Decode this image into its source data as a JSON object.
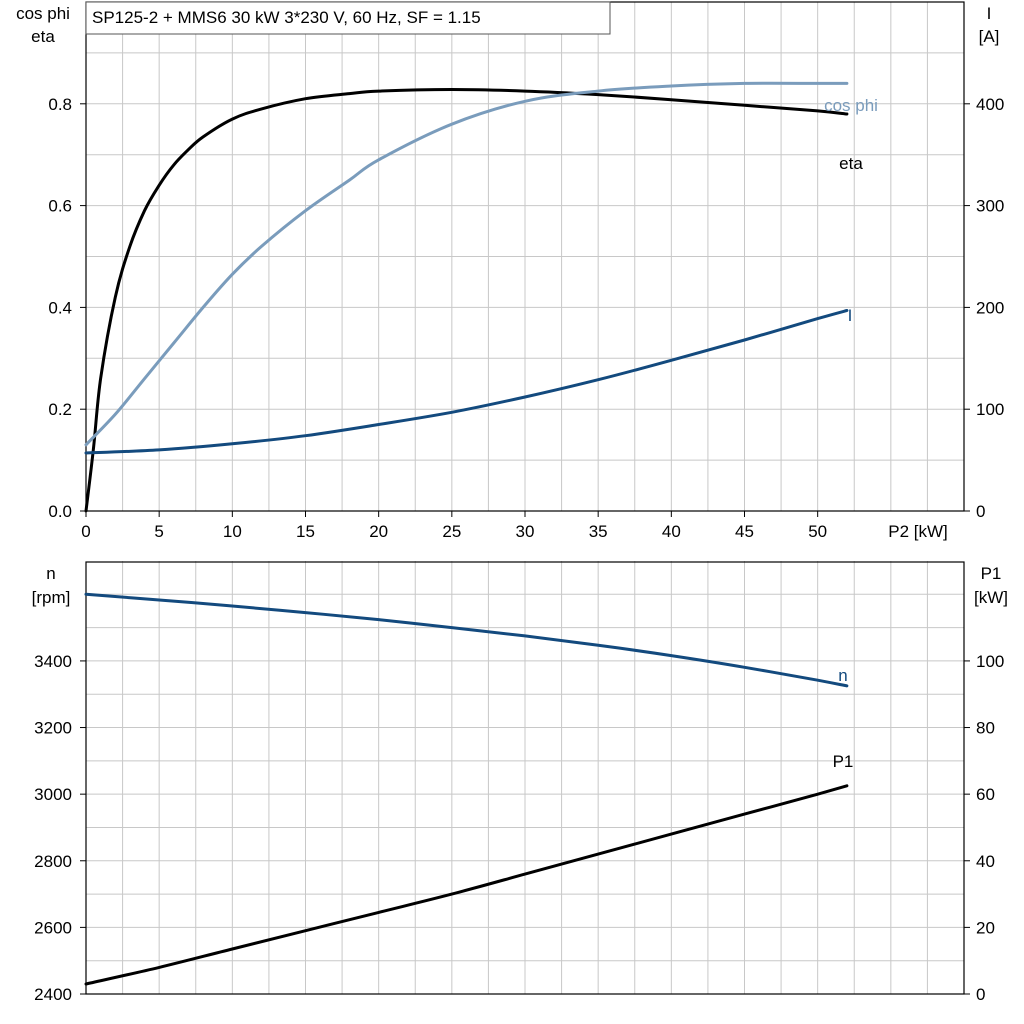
{
  "chart_data": [
    {
      "type": "line",
      "title": "SP125-2 + MMS6   30 kW   3*230 V, 60 Hz, SF = 1.15",
      "left_axis_label": [
        "cos phi",
        "eta"
      ],
      "right_axis_label": [
        "I",
        "[A]"
      ],
      "xlabel": "P2 [kW]",
      "xlim": [
        0,
        60
      ],
      "ylim_left": [
        0,
        1.0
      ],
      "ylim_right": [
        0,
        500
      ],
      "x_ticks": [
        "0",
        "5",
        "10",
        "15",
        "20",
        "25",
        "30",
        "35",
        "40",
        "45",
        "50"
      ],
      "y_left_ticks": [
        "0.0",
        "0.2",
        "0.4",
        "0.6",
        "0.8"
      ],
      "y_right_ticks": [
        "0",
        "100",
        "200",
        "300",
        "400"
      ],
      "grid": true,
      "series": [
        {
          "name": "eta",
          "axis": "left",
          "color": "#000000",
          "x": [
            0,
            0.5,
            1,
            2,
            3,
            4,
            5,
            6,
            7,
            8,
            10,
            12,
            15,
            18,
            20,
            25,
            30,
            35,
            40,
            45,
            50,
            52
          ],
          "y": [
            0.0,
            0.12,
            0.26,
            0.42,
            0.52,
            0.59,
            0.64,
            0.68,
            0.71,
            0.735,
            0.77,
            0.79,
            0.81,
            0.82,
            0.825,
            0.828,
            0.825,
            0.818,
            0.808,
            0.797,
            0.786,
            0.78
          ]
        },
        {
          "name": "cos phi",
          "axis": "left",
          "color": "#7a9cbc",
          "x": [
            0,
            2,
            4,
            6,
            8,
            10,
            12,
            15,
            18,
            20,
            25,
            30,
            35,
            40,
            45,
            50,
            52
          ],
          "y": [
            0.13,
            0.19,
            0.26,
            0.33,
            0.4,
            0.465,
            0.52,
            0.59,
            0.65,
            0.69,
            0.76,
            0.805,
            0.825,
            0.835,
            0.84,
            0.84,
            0.84
          ]
        },
        {
          "name": "I",
          "axis": "right",
          "color": "#134a7e",
          "x": [
            0,
            5,
            10,
            15,
            20,
            25,
            30,
            35,
            40,
            45,
            50,
            52
          ],
          "y": [
            57,
            60,
            66,
            74,
            85,
            97,
            112,
            129,
            148,
            168,
            189,
            197
          ]
        }
      ]
    },
    {
      "type": "line",
      "left_axis_label": [
        "n",
        "[rpm]"
      ],
      "right_axis_label": [
        "P1",
        "[kW]"
      ],
      "xlim": [
        0,
        60
      ],
      "ylim_left": [
        2400,
        3700
      ],
      "ylim_right": [
        0,
        130
      ],
      "y_left_ticks": [
        "2400",
        "2600",
        "2800",
        "3000",
        "3200",
        "3400"
      ],
      "y_right_ticks": [
        "0",
        "20",
        "40",
        "60",
        "80",
        "100"
      ],
      "grid": true,
      "series": [
        {
          "name": "n",
          "axis": "left",
          "color": "#134a7e",
          "x": [
            0,
            5,
            10,
            15,
            20,
            25,
            30,
            35,
            40,
            45,
            50,
            52
          ],
          "y": [
            3600,
            3583,
            3565,
            3545,
            3524,
            3500,
            3475,
            3447,
            3416,
            3381,
            3342,
            3325
          ]
        },
        {
          "name": "P1",
          "axis": "right",
          "color": "#000000",
          "x": [
            0,
            5,
            10,
            15,
            20,
            25,
            30,
            35,
            40,
            45,
            50,
            52
          ],
          "y": [
            3,
            8,
            13.5,
            19,
            24.5,
            30,
            36,
            42,
            48,
            54,
            60,
            62.5
          ]
        }
      ]
    }
  ]
}
